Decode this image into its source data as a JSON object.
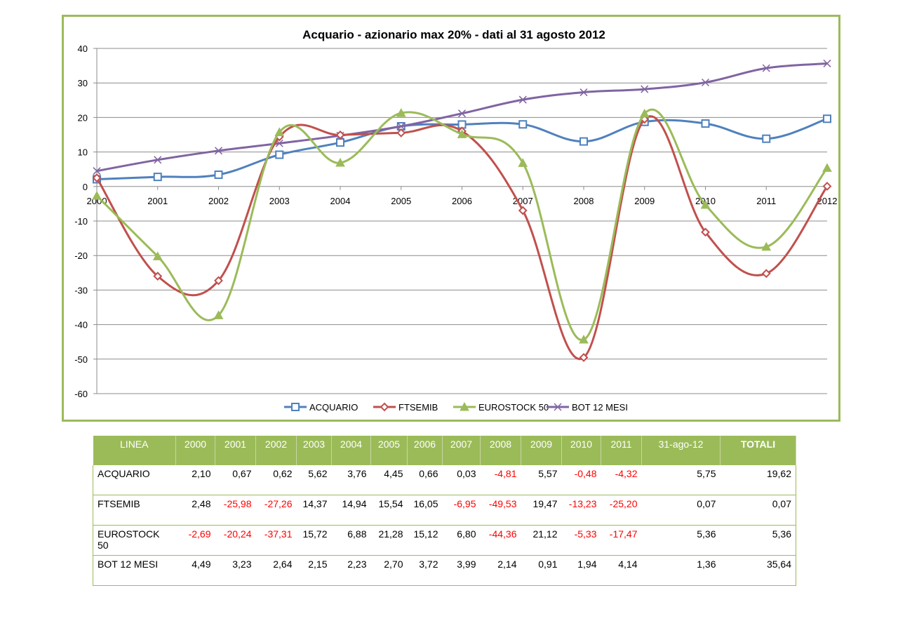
{
  "chart_data": {
    "type": "line",
    "title": "Acquario - azionario max 20% - dati al 31 agosto 2012",
    "x": [
      "2000",
      "2001",
      "2002",
      "2003",
      "2004",
      "2005",
      "2006",
      "2007",
      "2008",
      "2009",
      "2010",
      "2011",
      "2012"
    ],
    "ylim": [
      -60,
      40
    ],
    "yticks": [
      40,
      30,
      20,
      10,
      0,
      -10,
      -20,
      -30,
      -40,
      -50,
      -60
    ],
    "grid": true,
    "legend_position": "bottom",
    "series": [
      {
        "name": "ACQUARIO",
        "color": "#4f81bd",
        "marker": "square",
        "values": [
          2.1,
          2.78,
          3.41,
          9.21,
          12.74,
          17.44,
          17.96,
          18.0,
          13.05,
          18.72,
          18.24,
          13.84,
          19.62
        ]
      },
      {
        "name": "FTSEMIB",
        "color": "#c0504d",
        "marker": "diamond",
        "values": [
          2.48,
          -25.98,
          -27.26,
          14.37,
          14.94,
          15.54,
          16.05,
          -6.95,
          -49.53,
          19.47,
          -13.23,
          -25.2,
          0.07
        ]
      },
      {
        "name": "EUROSTOCK 50",
        "color": "#9bbb59",
        "marker": "triangle",
        "values": [
          -2.69,
          -20.24,
          -37.31,
          15.72,
          6.88,
          21.28,
          15.12,
          6.8,
          -44.36,
          21.12,
          -5.33,
          -17.47,
          5.36
        ]
      },
      {
        "name": "BOT 12 MESI",
        "color": "#8064a2",
        "marker": "x",
        "values": [
          4.49,
          7.72,
          10.36,
          12.51,
          14.74,
          17.44,
          21.16,
          25.15,
          27.29,
          28.2,
          30.14,
          34.28,
          35.64
        ]
      }
    ]
  },
  "table": {
    "headers": [
      "LINEA",
      "2000",
      "2001",
      "2002",
      "2003",
      "2004",
      "2005",
      "2006",
      "2007",
      "2008",
      "2009",
      "2010",
      "2011",
      "31-ago-12",
      "TOTALI"
    ],
    "rows": [
      {
        "label": "ACQUARIO",
        "cells": [
          "2,10",
          "0,67",
          "0,62",
          "5,62",
          "3,76",
          "4,45",
          "0,66",
          "0,03",
          "-4,81",
          "5,57",
          "-0,48",
          "-4,32",
          "5,75",
          "19,62"
        ]
      },
      {
        "label": "FTSEMIB",
        "cells": [
          "2,48",
          "-25,98",
          "-27,26",
          "14,37",
          "14,94",
          "15,54",
          "16,05",
          "-6,95",
          "-49,53",
          "19,47",
          "-13,23",
          "-25,20",
          "0,07",
          "0,07"
        ]
      },
      {
        "label": "EUROSTOCK 50",
        "cells": [
          "-2,69",
          "-20,24",
          "-37,31",
          "15,72",
          "6,88",
          "21,28",
          "15,12",
          "6,80",
          "-44,36",
          "21,12",
          "-5,33",
          "-17,47",
          "5,36",
          "5,36"
        ]
      },
      {
        "label": "BOT 12 MESI",
        "cells": [
          "4,49",
          "3,23",
          "2,64",
          "2,15",
          "2,23",
          "2,70",
          "3,72",
          "3,99",
          "2,14",
          "0,91",
          "1,94",
          "4,14",
          "1,36",
          "35,64"
        ]
      }
    ]
  }
}
